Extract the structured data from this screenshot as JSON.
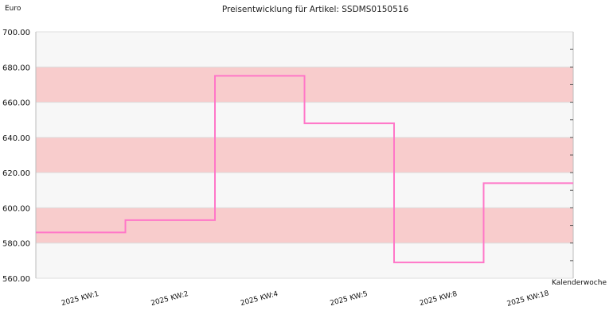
{
  "chart_data": {
    "type": "line",
    "step": true,
    "title": "Preisentwicklung für Artikel: SSDMS0150516",
    "ylabel": "Euro",
    "xlabel": "Kalenderwoche",
    "ylim": [
      560,
      700
    ],
    "yticks": [
      "560.00",
      "580.00",
      "600.00",
      "620.00",
      "640.00",
      "660.00",
      "680.00",
      "700.00"
    ],
    "categories": [
      "2025 KW:1",
      "2025 KW:2",
      "2025 KW:4",
      "2025 KW:5",
      "2025 KW:8",
      "2025 KW:18"
    ],
    "series": [
      {
        "values": [
          586,
          593,
          675,
          648,
          569,
          614
        ]
      }
    ],
    "colors": {
      "line": "#ff77c8",
      "band_light": "#f7f7f7",
      "band_dark": "#f8cccc",
      "grid": "#dddddd",
      "axis": "#bbbbbb"
    },
    "grid": true,
    "legend": "none"
  }
}
